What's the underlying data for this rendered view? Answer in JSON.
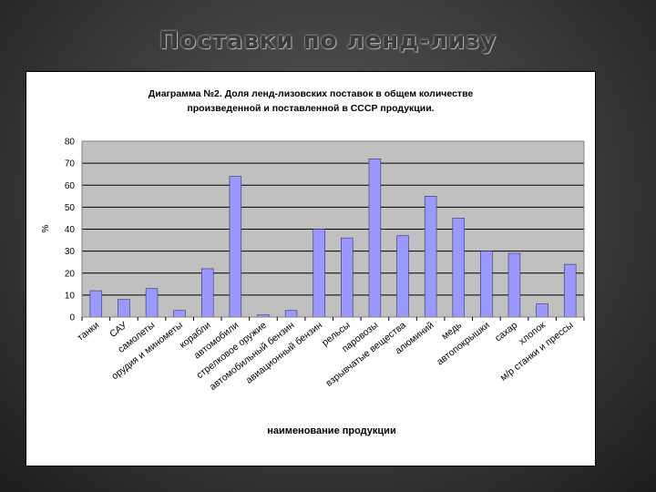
{
  "slide": {
    "title": "Поставки по ленд-лизу"
  },
  "chart_data": {
    "type": "bar",
    "title_line1": "Диаграмма №2. Доля ленд-лизовских поставок в общем количестве",
    "title_line2": "произведенной и поставленной в СССР продукции.",
    "xlabel": "наименование продукции",
    "ylabel": "%",
    "ylim": [
      0,
      80
    ],
    "yticks": [
      0,
      10,
      20,
      30,
      40,
      50,
      60,
      70,
      80
    ],
    "grid": true,
    "legend": "none",
    "categories": [
      "танки",
      "САУ",
      "самолеты",
      "орудия и минометы",
      "корабли",
      "автомобили",
      "стрелковое оружие",
      "автомобильный бензин",
      "авиационный бензин",
      "рельсы",
      "паровозы",
      "взрывчатые вещества",
      "алюминий",
      "медь",
      "автопокрышки",
      "сахар",
      "хлопок",
      "м/р станки и прессы"
    ],
    "values": [
      12,
      8,
      13,
      3,
      22,
      64,
      1,
      3,
      40,
      36,
      72,
      37,
      55,
      45,
      30,
      29,
      6,
      24
    ],
    "colors": {
      "bar": "#9999ff",
      "bar_stroke": "#333366",
      "plot_bg": "#c0c0c0"
    }
  }
}
